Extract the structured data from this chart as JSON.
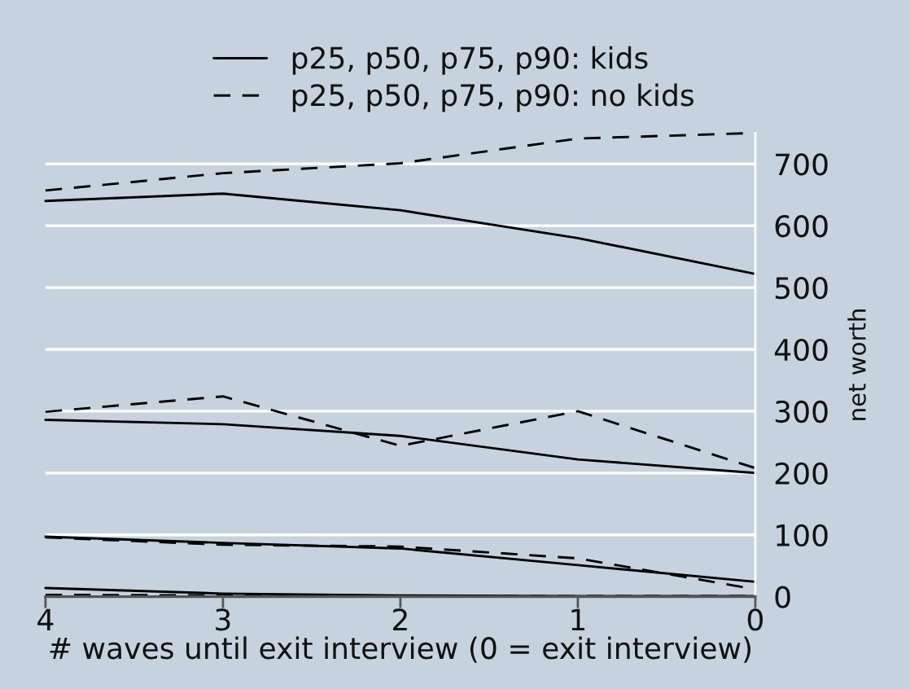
{
  "chart_data": {
    "type": "line",
    "xlabel": "# waves until exit interview (0 = exit interview)",
    "ylabel": "net worth",
    "x": [
      4,
      3,
      2,
      1,
      0
    ],
    "xlim": [
      4,
      0
    ],
    "xticks": [
      4,
      3,
      2,
      1,
      0
    ],
    "ylim": [
      0,
      750
    ],
    "yticks": [
      0,
      100,
      200,
      300,
      400,
      500,
      600,
      700
    ],
    "grid": "y",
    "legend": "top",
    "marker": "none",
    "series": [
      {
        "name": "p25, p50, p75, p90: kids",
        "color": "#000000",
        "line_style": "solid",
        "values": [
          14,
          5,
          2,
          1,
          1
        ]
      },
      {
        "color": "#000000",
        "line_style": "solid",
        "values": [
          97,
          87,
          78,
          51,
          24
        ]
      },
      {
        "color": "#000000",
        "line_style": "solid",
        "values": [
          286,
          279,
          260,
          222,
          200
        ]
      },
      {
        "color": "#000000",
        "line_style": "solid",
        "values": [
          640,
          652,
          625,
          580,
          522
        ]
      },
      {
        "name": "p25, p50, p75, p90: no kids",
        "color": "#000000",
        "line_style": "dashed",
        "values": [
          3,
          2,
          1,
          1,
          1
        ]
      },
      {
        "color": "#000000",
        "line_style": "dashed",
        "values": [
          96,
          84,
          81,
          62,
          12
        ]
      },
      {
        "color": "#000000",
        "line_style": "dashed",
        "values": [
          299,
          324,
          244,
          300,
          208
        ]
      },
      {
        "color": "#000000",
        "line_style": "dashed",
        "values": [
          657,
          685,
          701,
          741,
          750
        ]
      }
    ]
  }
}
